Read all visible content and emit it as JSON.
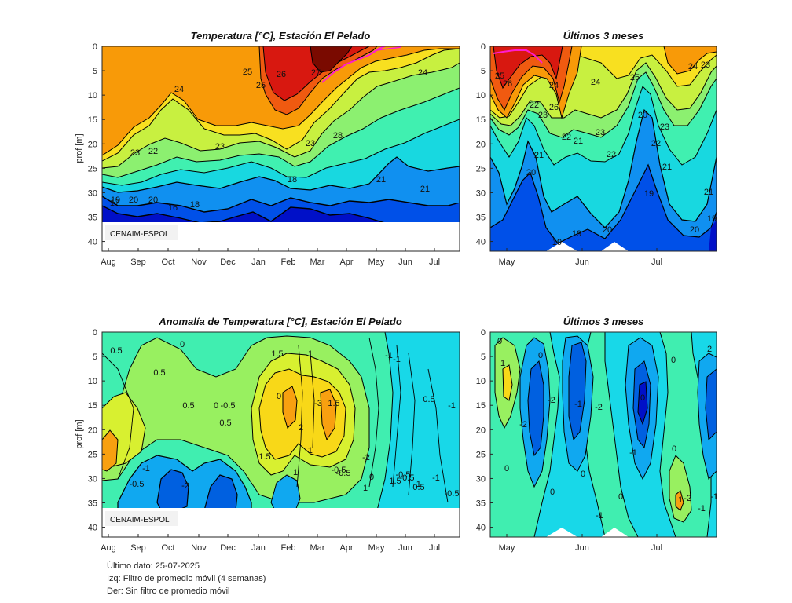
{
  "chart_data": [
    {
      "type": "contour",
      "title": "Temperatura [°C], Estación El Pelado",
      "ylabel": "prof [m]",
      "x_ticks": [
        "Aug",
        "Sep",
        "Oct",
        "Nov",
        "Dec",
        "Jan",
        "Feb",
        "Mar",
        "Apr",
        "May",
        "Jun",
        "Jul"
      ],
      "y_ticks": [
        0,
        5,
        10,
        15,
        20,
        25,
        30,
        35,
        40
      ],
      "ylim": [
        0,
        42
      ],
      "reversed_y": true,
      "contour_labels": [
        "17",
        "19",
        "20",
        "20",
        "21",
        "21",
        "22",
        "23",
        "23",
        "23",
        "24",
        "24",
        "25",
        "25",
        "26",
        "27",
        "28",
        "16",
        "18",
        "18"
      ],
      "color_bands": [
        {
          "range": "<=17",
          "color": "#0010c8"
        },
        {
          "range": "17-19",
          "color": "#0050e8"
        },
        {
          "range": "19-20",
          "color": "#1090f0"
        },
        {
          "range": "20-21",
          "color": "#18d8e0"
        },
        {
          "range": "21-22",
          "color": "#40f0b0"
        },
        {
          "range": "22-23",
          "color": "#8cf070"
        },
        {
          "range": "23-24",
          "color": "#c8f040"
        },
        {
          "range": "24-25",
          "color": "#f8e020"
        },
        {
          "range": "25-26",
          "color": "#f89a08"
        },
        {
          "range": "26-27",
          "color": "#f05a10"
        },
        {
          "range": "27-28",
          "color": "#d81810"
        },
        {
          "range": ">=28",
          "color": "#7a0a00"
        }
      ],
      "watermark": "CENAIM-ESPOL"
    },
    {
      "type": "contour",
      "title": "Últimos 3 meses",
      "x_ticks": [
        "May",
        "Jun",
        "Jul"
      ],
      "y_ticks": [
        0,
        5,
        10,
        15,
        20,
        25,
        30,
        35,
        40
      ],
      "ylim": [
        0,
        42
      ],
      "reversed_y": true,
      "contour_labels": [
        "25",
        "26",
        "24",
        "22",
        "23",
        "26",
        "24",
        "25",
        "24",
        "23",
        "22",
        "21",
        "21",
        "23",
        "22",
        "20",
        "21",
        "22",
        "20",
        "19",
        "19",
        "19",
        "20",
        "21",
        "19",
        "23",
        "20"
      ]
    },
    {
      "type": "contour",
      "title": "Anomalía de Temperatura [°C], Estación El Pelado",
      "ylabel": "prof [m]",
      "x_ticks": [
        "Aug",
        "Sep",
        "Oct",
        "Nov",
        "Dec",
        "Jan",
        "Feb",
        "Mar",
        "Apr",
        "May",
        "Jun",
        "Jul"
      ],
      "y_ticks": [
        0,
        5,
        10,
        15,
        20,
        25,
        30,
        35,
        40
      ],
      "ylim": [
        0,
        42
      ],
      "reversed_y": true,
      "contour_labels": [
        "0.5",
        "0",
        "1",
        "0.5",
        "0.5",
        "-0.5",
        "0.5",
        "1.5",
        "-1",
        "-2",
        "0",
        "1",
        "-0.5",
        "0",
        "-3",
        "1.5",
        "2",
        "1.5",
        "1",
        "0.5",
        "-0.5",
        "-1",
        "-0.5",
        "1.5",
        "-0.5",
        "-1",
        "-1",
        "-2",
        "0",
        "0.5",
        "-0.5",
        "-1",
        "-0.5",
        "-1",
        "-1"
      ],
      "color_bands": [
        {
          "range": "<-2.5",
          "color": "#0010c8"
        },
        {
          "range": "-2.5 to -1.5",
          "color": "#0060e0"
        },
        {
          "range": "-1.5 to -0.5",
          "color": "#10a8f0"
        },
        {
          "range": "-0.5 to 0",
          "color": "#18d8e8"
        },
        {
          "range": "0 to 0.5",
          "color": "#40eeb0"
        },
        {
          "range": "0.5 to 1",
          "color": "#98f060"
        },
        {
          "range": "1 to 1.5",
          "color": "#d8f030"
        },
        {
          "range": "1.5 to 2",
          "color": "#f8d818"
        },
        {
          "range": "2 to 2.5",
          "color": "#f8a010"
        }
      ],
      "watermark": "CENAIM-ESPOL"
    },
    {
      "type": "contour",
      "title": "Últimos 3 meses",
      "x_ticks": [
        "May",
        "Jun",
        "Jul"
      ],
      "y_ticks": [
        0,
        5,
        10,
        15,
        20,
        25,
        30,
        35,
        40
      ],
      "ylim": [
        0,
        42
      ],
      "reversed_y": true,
      "contour_labels": [
        "0",
        "1",
        "0",
        "-2",
        "-2",
        "-1",
        "-2",
        "0",
        "0",
        "-1",
        "0",
        "-2",
        "-1",
        "2",
        "0",
        "0",
        "-1",
        "0",
        "1",
        "-1",
        "0"
      ]
    }
  ],
  "footer": {
    "line1": "Último dato: 25-07-2025",
    "line2": "Izq: Filtro de promedio móvil (4 semanas)",
    "line3": "Der: Sin filtro de promedio móvil"
  }
}
